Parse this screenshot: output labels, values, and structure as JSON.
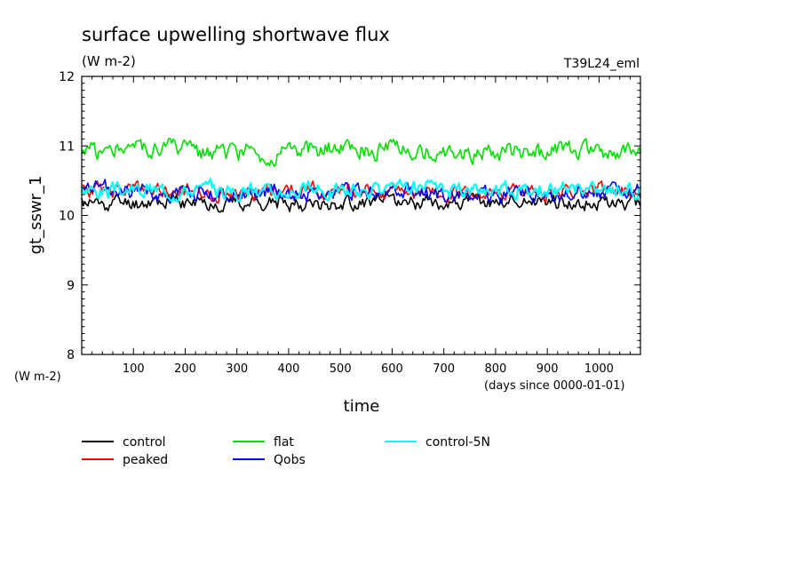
{
  "chart_data": {
    "type": "line",
    "title": "surface upwelling shortwave flux",
    "units": "(W m-2)",
    "run_label": "T39L24_eml",
    "xlabel": "time",
    "x_units": "(days since 0000-01-01)",
    "ylabel": "gt_sswr_1",
    "y_units": "(W m-2)",
    "xlim": [
      0,
      1080
    ],
    "ylim": [
      8,
      12
    ],
    "x_ticks": [
      100,
      200,
      300,
      400,
      500,
      600,
      700,
      800,
      900,
      1000
    ],
    "y_ticks": [
      8,
      9,
      10,
      11,
      12
    ],
    "grid": false,
    "legend_position": "bottom",
    "series": [
      {
        "name": "control",
        "color": "#000000",
        "mean": 10.18,
        "amp": 0.13,
        "seed": 11
      },
      {
        "name": "peaked",
        "color": "#ff0000",
        "mean": 10.35,
        "amp": 0.13,
        "seed": 23
      },
      {
        "name": "Qobs",
        "color": "#0000ff",
        "mean": 10.33,
        "amp": 0.14,
        "seed": 37
      },
      {
        "name": "flat",
        "color": "#00e000",
        "mean": 10.93,
        "amp": 0.16,
        "seed": 51
      },
      {
        "name": "control-5N",
        "color": "#00ffff",
        "mean": 10.37,
        "amp": 0.13,
        "seed": 67
      }
    ],
    "x_step_days": 3
  }
}
